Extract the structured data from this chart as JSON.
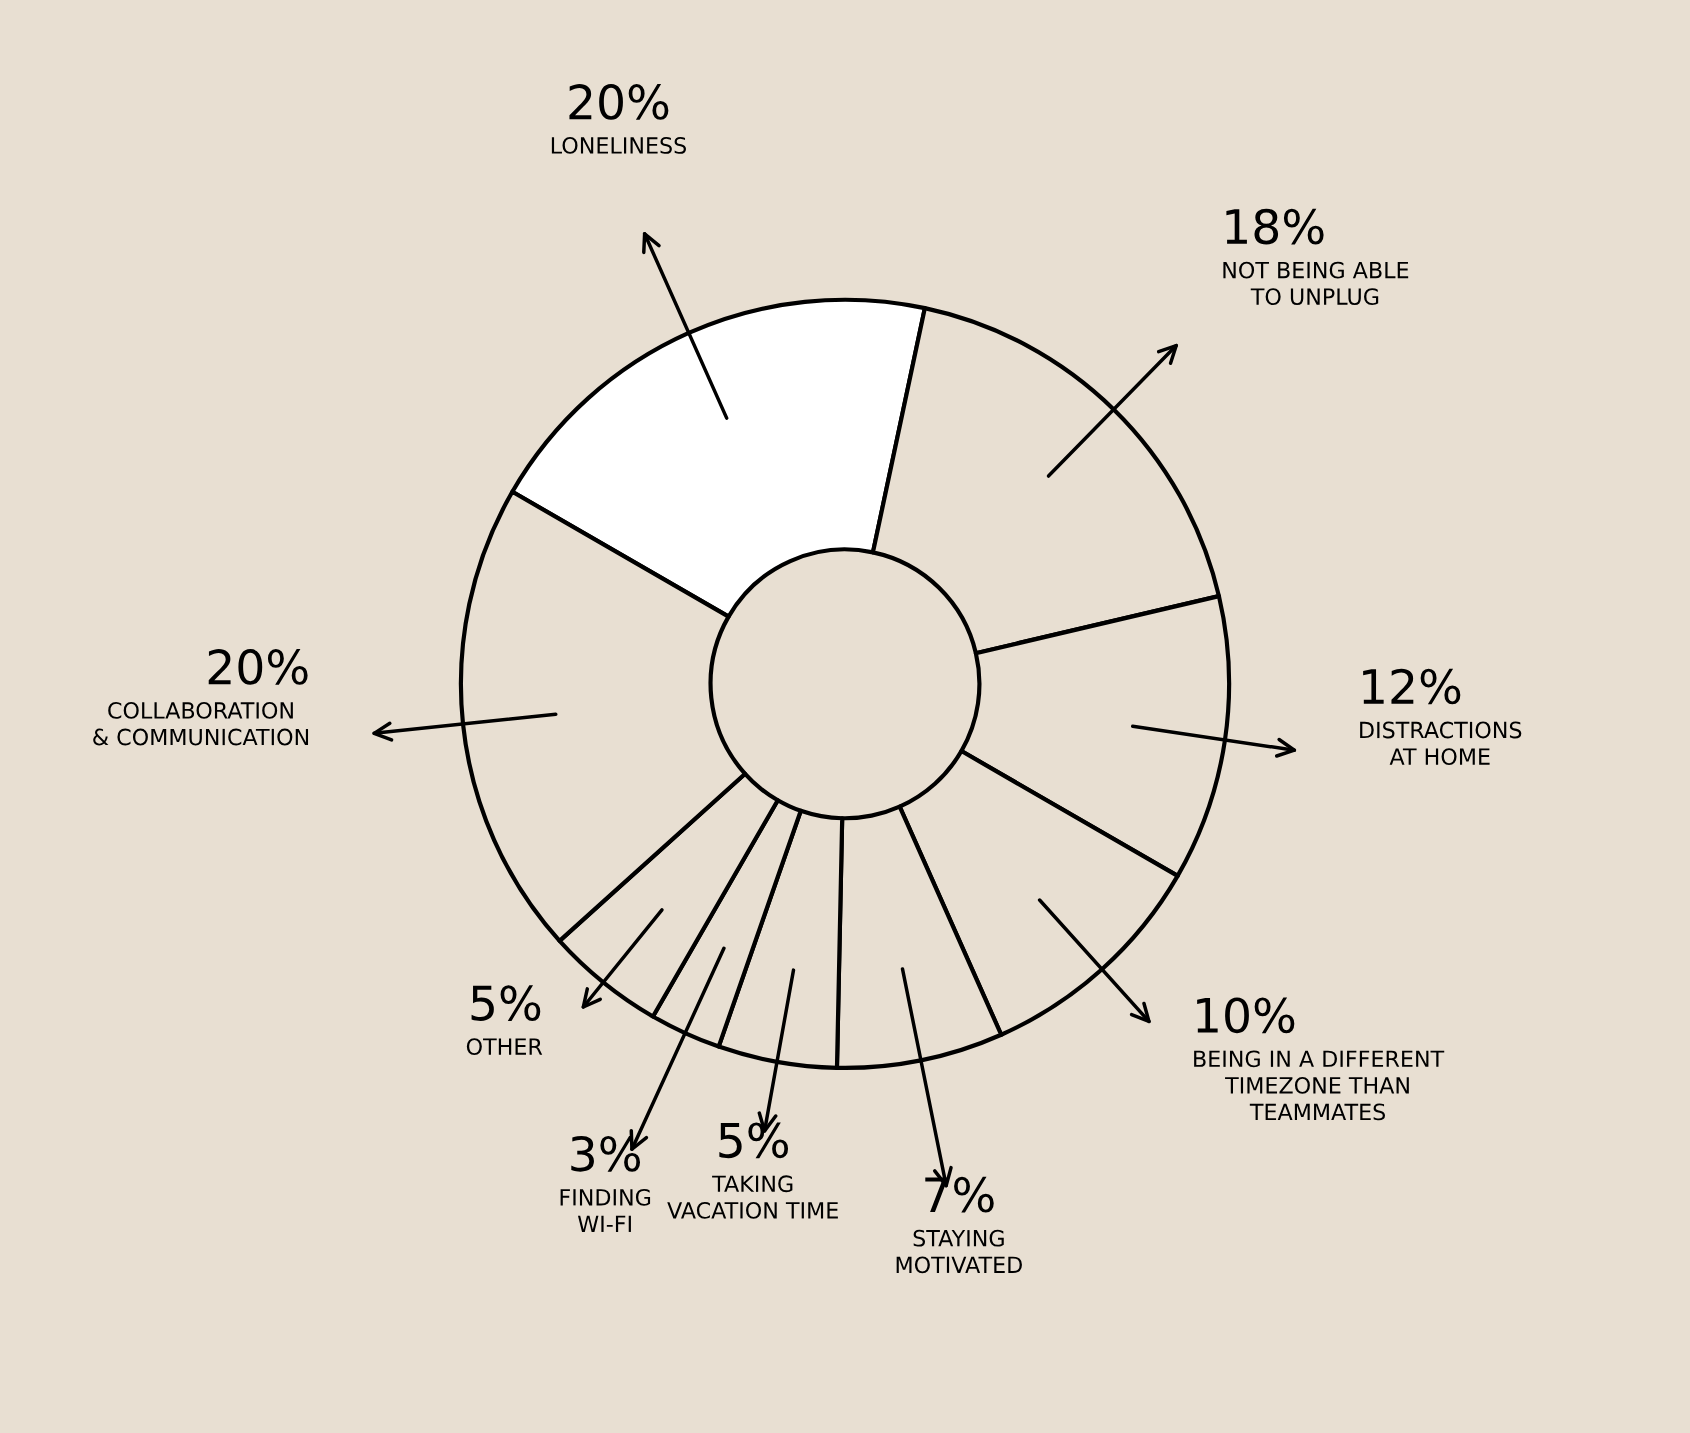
{
  "chart_data": {
    "type": "donut",
    "categories": [
      "LONELINESS",
      "NOT BEING ABLE\nTO UNPLUG",
      "DISTRACTIONS\nAT HOME",
      "BEING IN A DIFFERENT\nTIMEZONE THAN\nTEAMMATES",
      "STAYING\nMOTIVATED",
      "TAKING\nVACATION TIME",
      "FINDING\nWI-FI",
      "OTHER",
      "COLLABORATION\n& COMMUNICATION"
    ],
    "values": [
      20,
      18,
      12,
      10,
      7,
      5,
      3,
      5,
      20
    ],
    "value_labels": [
      "20%",
      "18%",
      "12%",
      "10%",
      "7%",
      "5%",
      "3%",
      "5%",
      "20%"
    ],
    "colors": [
      "#ffffff",
      "#e8dfd2",
      "#e8dfd2",
      "#e8dfd2",
      "#e8dfd2",
      "#e8dfd2",
      "#e8dfd2",
      "#e8dfd2",
      "#e8dfd2"
    ],
    "legend": false
  }
}
